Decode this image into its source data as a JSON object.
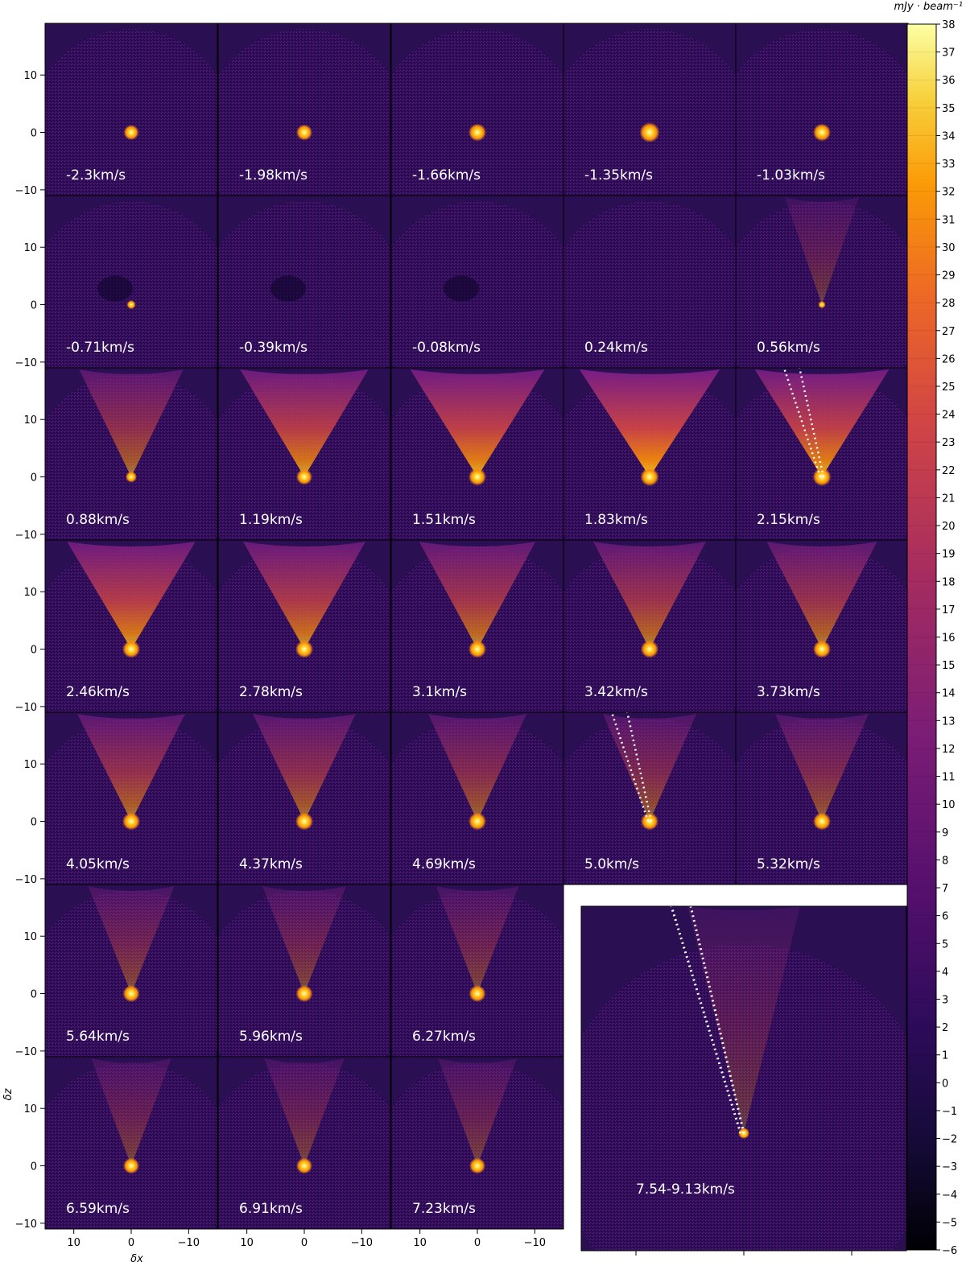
{
  "chart_data": {
    "type": "heatmap",
    "description_units": "channel maps",
    "xlabel": "δx",
    "ylabel": "δz",
    "x_ticks": [
      "10",
      "0",
      "−10"
    ],
    "y_ticks": [
      "10",
      "0",
      "−10"
    ],
    "colorbar": {
      "label": "mJy · beam⁻¹",
      "min": -6,
      "max": 38,
      "ticks": [
        "38",
        "37",
        "36",
        "35",
        "34",
        "33",
        "32",
        "31",
        "30",
        "29",
        "28",
        "27",
        "26",
        "25",
        "24",
        "23",
        "22",
        "21",
        "20",
        "19",
        "18",
        "17",
        "16",
        "15",
        "14",
        "13",
        "12",
        "11",
        "10",
        "9",
        "8",
        "7",
        "6",
        "5",
        "4",
        "3",
        "2",
        "1",
        "0",
        "−1",
        "−2",
        "−3",
        "−4",
        "−5",
        "−6"
      ],
      "colormap": "inferno-like"
    },
    "panels": [
      {
        "label": "-2.3km/s",
        "v": -2.3,
        "outflow": 0,
        "blob": 0.55
      },
      {
        "label": "-1.98km/s",
        "v": -1.98,
        "outflow": 0,
        "blob": 0.6
      },
      {
        "label": "-1.66km/s",
        "v": -1.66,
        "outflow": 0,
        "blob": 0.7
      },
      {
        "label": "-1.35km/s",
        "v": -1.35,
        "outflow": 0,
        "blob": 0.85
      },
      {
        "label": "-1.03km/s",
        "v": -1.03,
        "outflow": 0,
        "blob": 0.7
      },
      {
        "label": "-0.71km/s",
        "v": -0.71,
        "outflow": 0,
        "blob": 0.15
      },
      {
        "label": "-0.39km/s",
        "v": -0.39,
        "outflow": 0,
        "blob": 0.0
      },
      {
        "label": "-0.08km/s",
        "v": -0.08,
        "outflow": 0,
        "blob": 0.0
      },
      {
        "label": "0.24km/s",
        "v": 0.24,
        "outflow": 0,
        "blob": 0.0
      },
      {
        "label": "0.56km/s",
        "v": 0.56,
        "outflow": 0.1,
        "blob": 0.05
      },
      {
        "label": "0.88km/s",
        "v": 0.88,
        "outflow": 0.35,
        "blob": 0.3
      },
      {
        "label": "1.19km/s",
        "v": 1.19,
        "outflow": 0.55,
        "blob": 0.6
      },
      {
        "label": "1.51km/s",
        "v": 1.51,
        "outflow": 0.6,
        "blob": 0.7
      },
      {
        "label": "1.83km/s",
        "v": 1.83,
        "outflow": 0.65,
        "blob": 0.75
      },
      {
        "label": "2.15km/s",
        "v": 2.15,
        "outflow": 0.6,
        "blob": 0.75,
        "dotted": true
      },
      {
        "label": "2.46km/s",
        "v": 2.46,
        "outflow": 0.55,
        "blob": 0.7
      },
      {
        "label": "2.78km/s",
        "v": 2.78,
        "outflow": 0.5,
        "blob": 0.7
      },
      {
        "label": "3.1km/s",
        "v": 3.1,
        "outflow": 0.45,
        "blob": 0.7
      },
      {
        "label": "3.42km/s",
        "v": 3.42,
        "outflow": 0.42,
        "blob": 0.7
      },
      {
        "label": "3.73km/s",
        "v": 3.73,
        "outflow": 0.4,
        "blob": 0.7
      },
      {
        "label": "4.05km/s",
        "v": 4.05,
        "outflow": 0.38,
        "blob": 0.7
      },
      {
        "label": "4.37km/s",
        "v": 4.37,
        "outflow": 0.34,
        "blob": 0.7
      },
      {
        "label": "4.69km/s",
        "v": 4.69,
        "outflow": 0.3,
        "blob": 0.7
      },
      {
        "label": "5.0km/s",
        "v": 5.0,
        "outflow": 0.26,
        "blob": 0.7,
        "dotted": true
      },
      {
        "label": "5.32km/s",
        "v": 5.32,
        "outflow": 0.26,
        "blob": 0.7
      },
      {
        "label": "5.64km/s",
        "v": 5.64,
        "outflow": 0.2,
        "blob": 0.65
      },
      {
        "label": "5.96km/s",
        "v": 5.96,
        "outflow": 0.18,
        "blob": 0.65
      },
      {
        "label": "6.27km/s",
        "v": 6.27,
        "outflow": 0.17,
        "blob": 0.65
      },
      {
        "label": "6.59km/s",
        "v": 6.59,
        "outflow": 0.15,
        "blob": 0.6
      },
      {
        "label": "6.91km/s",
        "v": 6.91,
        "outflow": 0.15,
        "blob": 0.6
      },
      {
        "label": "7.23km/s",
        "v": 7.23,
        "outflow": 0.14,
        "blob": 0.6
      }
    ],
    "inset": {
      "label": "7.54-9.13km/s",
      "outflow": 0.12,
      "blob": 0.7,
      "dotted": true
    }
  }
}
